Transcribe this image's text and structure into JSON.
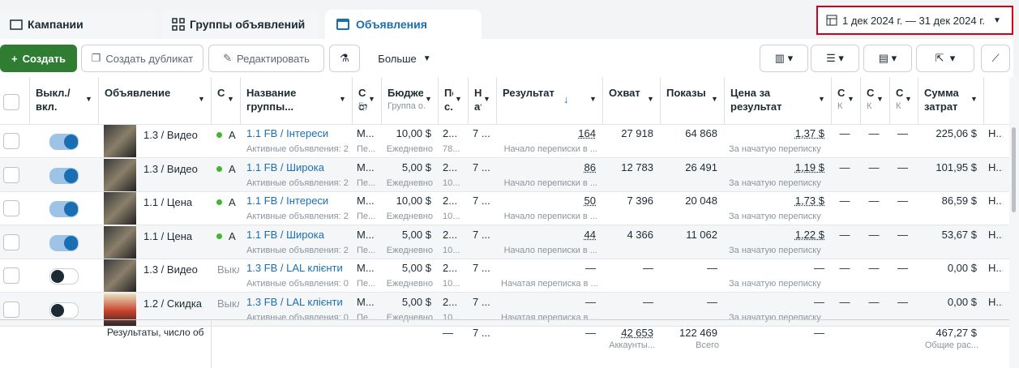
{
  "tabs": [
    "Кампании",
    "Группы объявлений",
    "Объявления"
  ],
  "date_range": "1 дек 2024 г. — 31 дек 2024 г.",
  "toolbar": {
    "create": "Создать",
    "duplicate": "Создать дубликат",
    "edit": "Редактировать",
    "more": "Больше"
  },
  "columns": {
    "toggle": {
      "label": "Выкл./вкл."
    },
    "ad": {
      "label": "Объявление"
    },
    "status": {
      "label": "С"
    },
    "group": {
      "label": "Название группы..."
    },
    "strategy": {
      "label": "Стр ста",
      "sub": "Гр..."
    },
    "budget": {
      "label": "Бюджет",
      "sub": "Группа о..."
    },
    "pos": {
      "label": "Пос с..."
    },
    "attr": {
      "label": "Нас атр"
    },
    "result": {
      "label": "Результат"
    },
    "reach": {
      "label": "Охват"
    },
    "impressions": {
      "label": "Показы"
    },
    "cost": {
      "label": "Цена за результат"
    },
    "c1": {
      "label": "С",
      "sub": "К"
    },
    "c2": {
      "label": "С",
      "sub": "К"
    },
    "c3": {
      "label": "С",
      "sub": "К"
    },
    "spend": {
      "label": "Сумма затрат"
    }
  },
  "rows": [
    {
      "on": true,
      "ad": "1.3 / Видео",
      "status": "А",
      "group": "1.1 FB / Інтереси",
      "group_sub": "Активные объявления: 2",
      "strategy": "М...",
      "strategy_sub": "Пе...",
      "budget": "10,00 $",
      "budget_sub": "Ежедневно",
      "pos": "2...",
      "pos_sub": "78...",
      "attr": "7 ...",
      "result": "164",
      "result_sub": "Начало переписки в ...",
      "reach": "27 918",
      "impressions": "64 868",
      "cost": "1,37 $",
      "cost_sub": "За начатую переписку",
      "c1": "—",
      "c2": "—",
      "c3": "—",
      "spend": "225,06 $",
      "last": "Н..."
    },
    {
      "on": true,
      "ad": "1.3 / Видео",
      "status": "А",
      "group": "1.1 FB / Широка",
      "group_sub": "Активные объявления: 2",
      "strategy": "М...",
      "strategy_sub": "Пе...",
      "budget": "5,00 $",
      "budget_sub": "Ежедневно",
      "pos": "2...",
      "pos_sub": "10...",
      "attr": "7 ...",
      "result": "86",
      "result_sub": "Начало переписки в ...",
      "reach": "12 783",
      "impressions": "26 491",
      "cost": "1,19 $",
      "cost_sub": "За начатую переписку",
      "c1": "—",
      "c2": "—",
      "c3": "—",
      "spend": "101,95 $",
      "last": "Н..."
    },
    {
      "on": true,
      "ad": "1.1 / Цена",
      "status": "А",
      "group": "1.1 FB / Інтереси",
      "group_sub": "Активные объявления: 2",
      "strategy": "М...",
      "strategy_sub": "Пе...",
      "budget": "10,00 $",
      "budget_sub": "Ежедневно",
      "pos": "2...",
      "pos_sub": "10...",
      "attr": "7 ...",
      "result": "50",
      "result_sub": "Начало переписки в ...",
      "reach": "7 396",
      "impressions": "20 048",
      "cost": "1,73 $",
      "cost_sub": "За начатую переписку",
      "c1": "—",
      "c2": "—",
      "c3": "—",
      "spend": "86,59 $",
      "last": "Н..."
    },
    {
      "on": true,
      "ad": "1.1 / Цена",
      "status": "А",
      "group": "1.1 FB / Широка",
      "group_sub": "Активные объявления: 2",
      "strategy": "М...",
      "strategy_sub": "Пе...",
      "budget": "5,00 $",
      "budget_sub": "Ежедневно",
      "pos": "2...",
      "pos_sub": "10...",
      "attr": "7 ...",
      "result": "44",
      "result_sub": "Начало переписки в ...",
      "reach": "4 366",
      "impressions": "11 062",
      "cost": "1,22 $",
      "cost_sub": "За начатую переписку",
      "c1": "—",
      "c2": "—",
      "c3": "—",
      "spend": "53,67 $",
      "last": "Н..."
    },
    {
      "on": false,
      "ad": "1.3 / Видео",
      "status": "Выкл",
      "group": "1.3 FB / LAL клієнти",
      "group_sub": "Активные объявления: 0",
      "strategy": "М...",
      "strategy_sub": "Пе...",
      "budget": "5,00 $",
      "budget_sub": "Ежедневно",
      "pos": "2...",
      "pos_sub": "10...",
      "attr": "7 ...",
      "result": "—",
      "result_sub": "Начатая переписка в ...",
      "reach": "—",
      "impressions": "—",
      "cost": "—",
      "cost_sub": "За начатую переписку",
      "c1": "—",
      "c2": "—",
      "c3": "—",
      "spend": "0,00 $",
      "last": "Н..."
    },
    {
      "on": false,
      "ad": "1.2 / Скидка",
      "status": "Выкл",
      "group": "1.3 FB / LAL клієнти",
      "group_sub": "Активные объявления: 0",
      "strategy": "М...",
      "strategy_sub": "Пе...",
      "budget": "5,00 $",
      "budget_sub": "Ежедневно",
      "pos": "2...",
      "pos_sub": "10...",
      "attr": "7 ...",
      "result": "—",
      "result_sub": "Начатая переписка в ...",
      "reach": "—",
      "impressions": "—",
      "cost": "—",
      "cost_sub": "За начатую переписку",
      "c1": "—",
      "c2": "—",
      "c3": "—",
      "spend": "0,00 $",
      "last": "Н..."
    }
  ],
  "footer": {
    "label": "Результаты, число об",
    "pos": "—",
    "attr": "7 ...",
    "result": "—",
    "reach": "42 653",
    "reach_sub": "Аккаунты...",
    "impressions": "122 469",
    "impressions_sub": "Всего",
    "cost": "—",
    "spend": "467,27 $",
    "spend_sub": "Общие рас..."
  }
}
